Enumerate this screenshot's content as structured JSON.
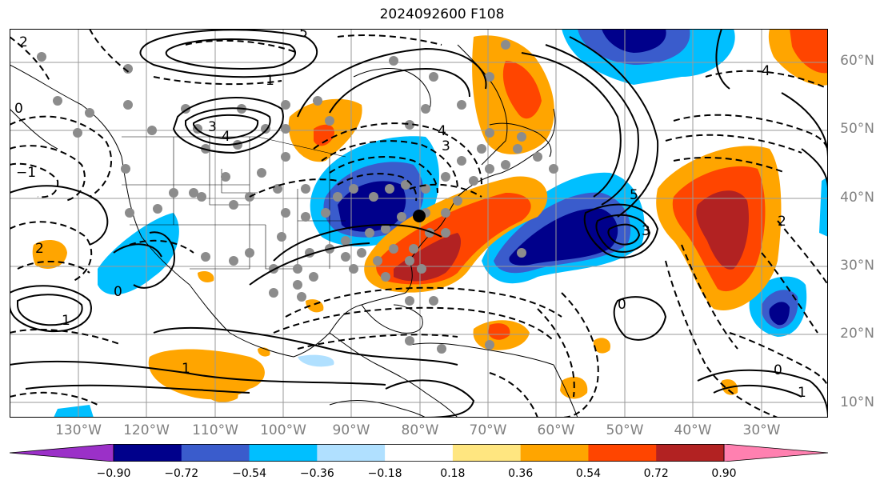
{
  "title": "2024092600 F108",
  "lat_labels": [
    "60°N",
    "50°N",
    "40°N",
    "30°N",
    "20°N",
    "10°N"
  ],
  "lon_labels": [
    "130°W",
    "120°W",
    "110°W",
    "100°W",
    "90°W",
    "80°W",
    "70°W",
    "60°W",
    "50°W",
    "40°W",
    "30°W"
  ],
  "colorbar": {
    "ticks": [
      "−0.90",
      "−0.72",
      "−0.54",
      "−0.36",
      "−0.18",
      "0.18",
      "0.36",
      "0.54",
      "0.72",
      "0.90"
    ],
    "colors": [
      "#9b30c8",
      "#00008b",
      "#3a5ccc",
      "#00bfff",
      "#b0e0ff",
      "#ffffff",
      "#ffe680",
      "#ffa500",
      "#ff4500",
      "#b22222",
      "#ff80b0"
    ]
  },
  "contour_labels": [
    "2",
    "3",
    "4",
    "5",
    "1",
    "0",
    "−1",
    "2",
    "3",
    "4",
    "5",
    "3",
    "4",
    "1",
    "0",
    "2",
    "1",
    "0",
    "0",
    "1"
  ]
}
